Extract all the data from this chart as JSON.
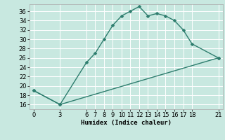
{
  "xlabel": "Humidex (Indice chaleur)",
  "bg_color": "#c8e8e0",
  "line_color": "#2e7d6e",
  "grid_color": "#ffffff",
  "curve1_x": [
    0,
    3,
    6,
    7,
    8,
    9,
    10,
    11,
    12,
    13,
    14,
    15,
    16,
    17,
    18,
    21
  ],
  "curve1_y": [
    19,
    16,
    25,
    27,
    30,
    33,
    35,
    36,
    37,
    35,
    35.5,
    35,
    34,
    32,
    29,
    26
  ],
  "curve2_x": [
    0,
    3,
    21
  ],
  "curve2_y": [
    19,
    16,
    26
  ],
  "xlim": [
    -0.5,
    21.5
  ],
  "ylim": [
    15,
    37.5
  ],
  "xticks": [
    0,
    3,
    6,
    7,
    8,
    9,
    10,
    11,
    12,
    13,
    14,
    15,
    16,
    17,
    18,
    21
  ],
  "yticks": [
    16,
    18,
    20,
    22,
    24,
    26,
    28,
    30,
    32,
    34,
    36
  ],
  "markersize": 2.5,
  "linewidth": 1.0,
  "tick_fontsize": 6.0,
  "xlabel_fontsize": 6.5
}
